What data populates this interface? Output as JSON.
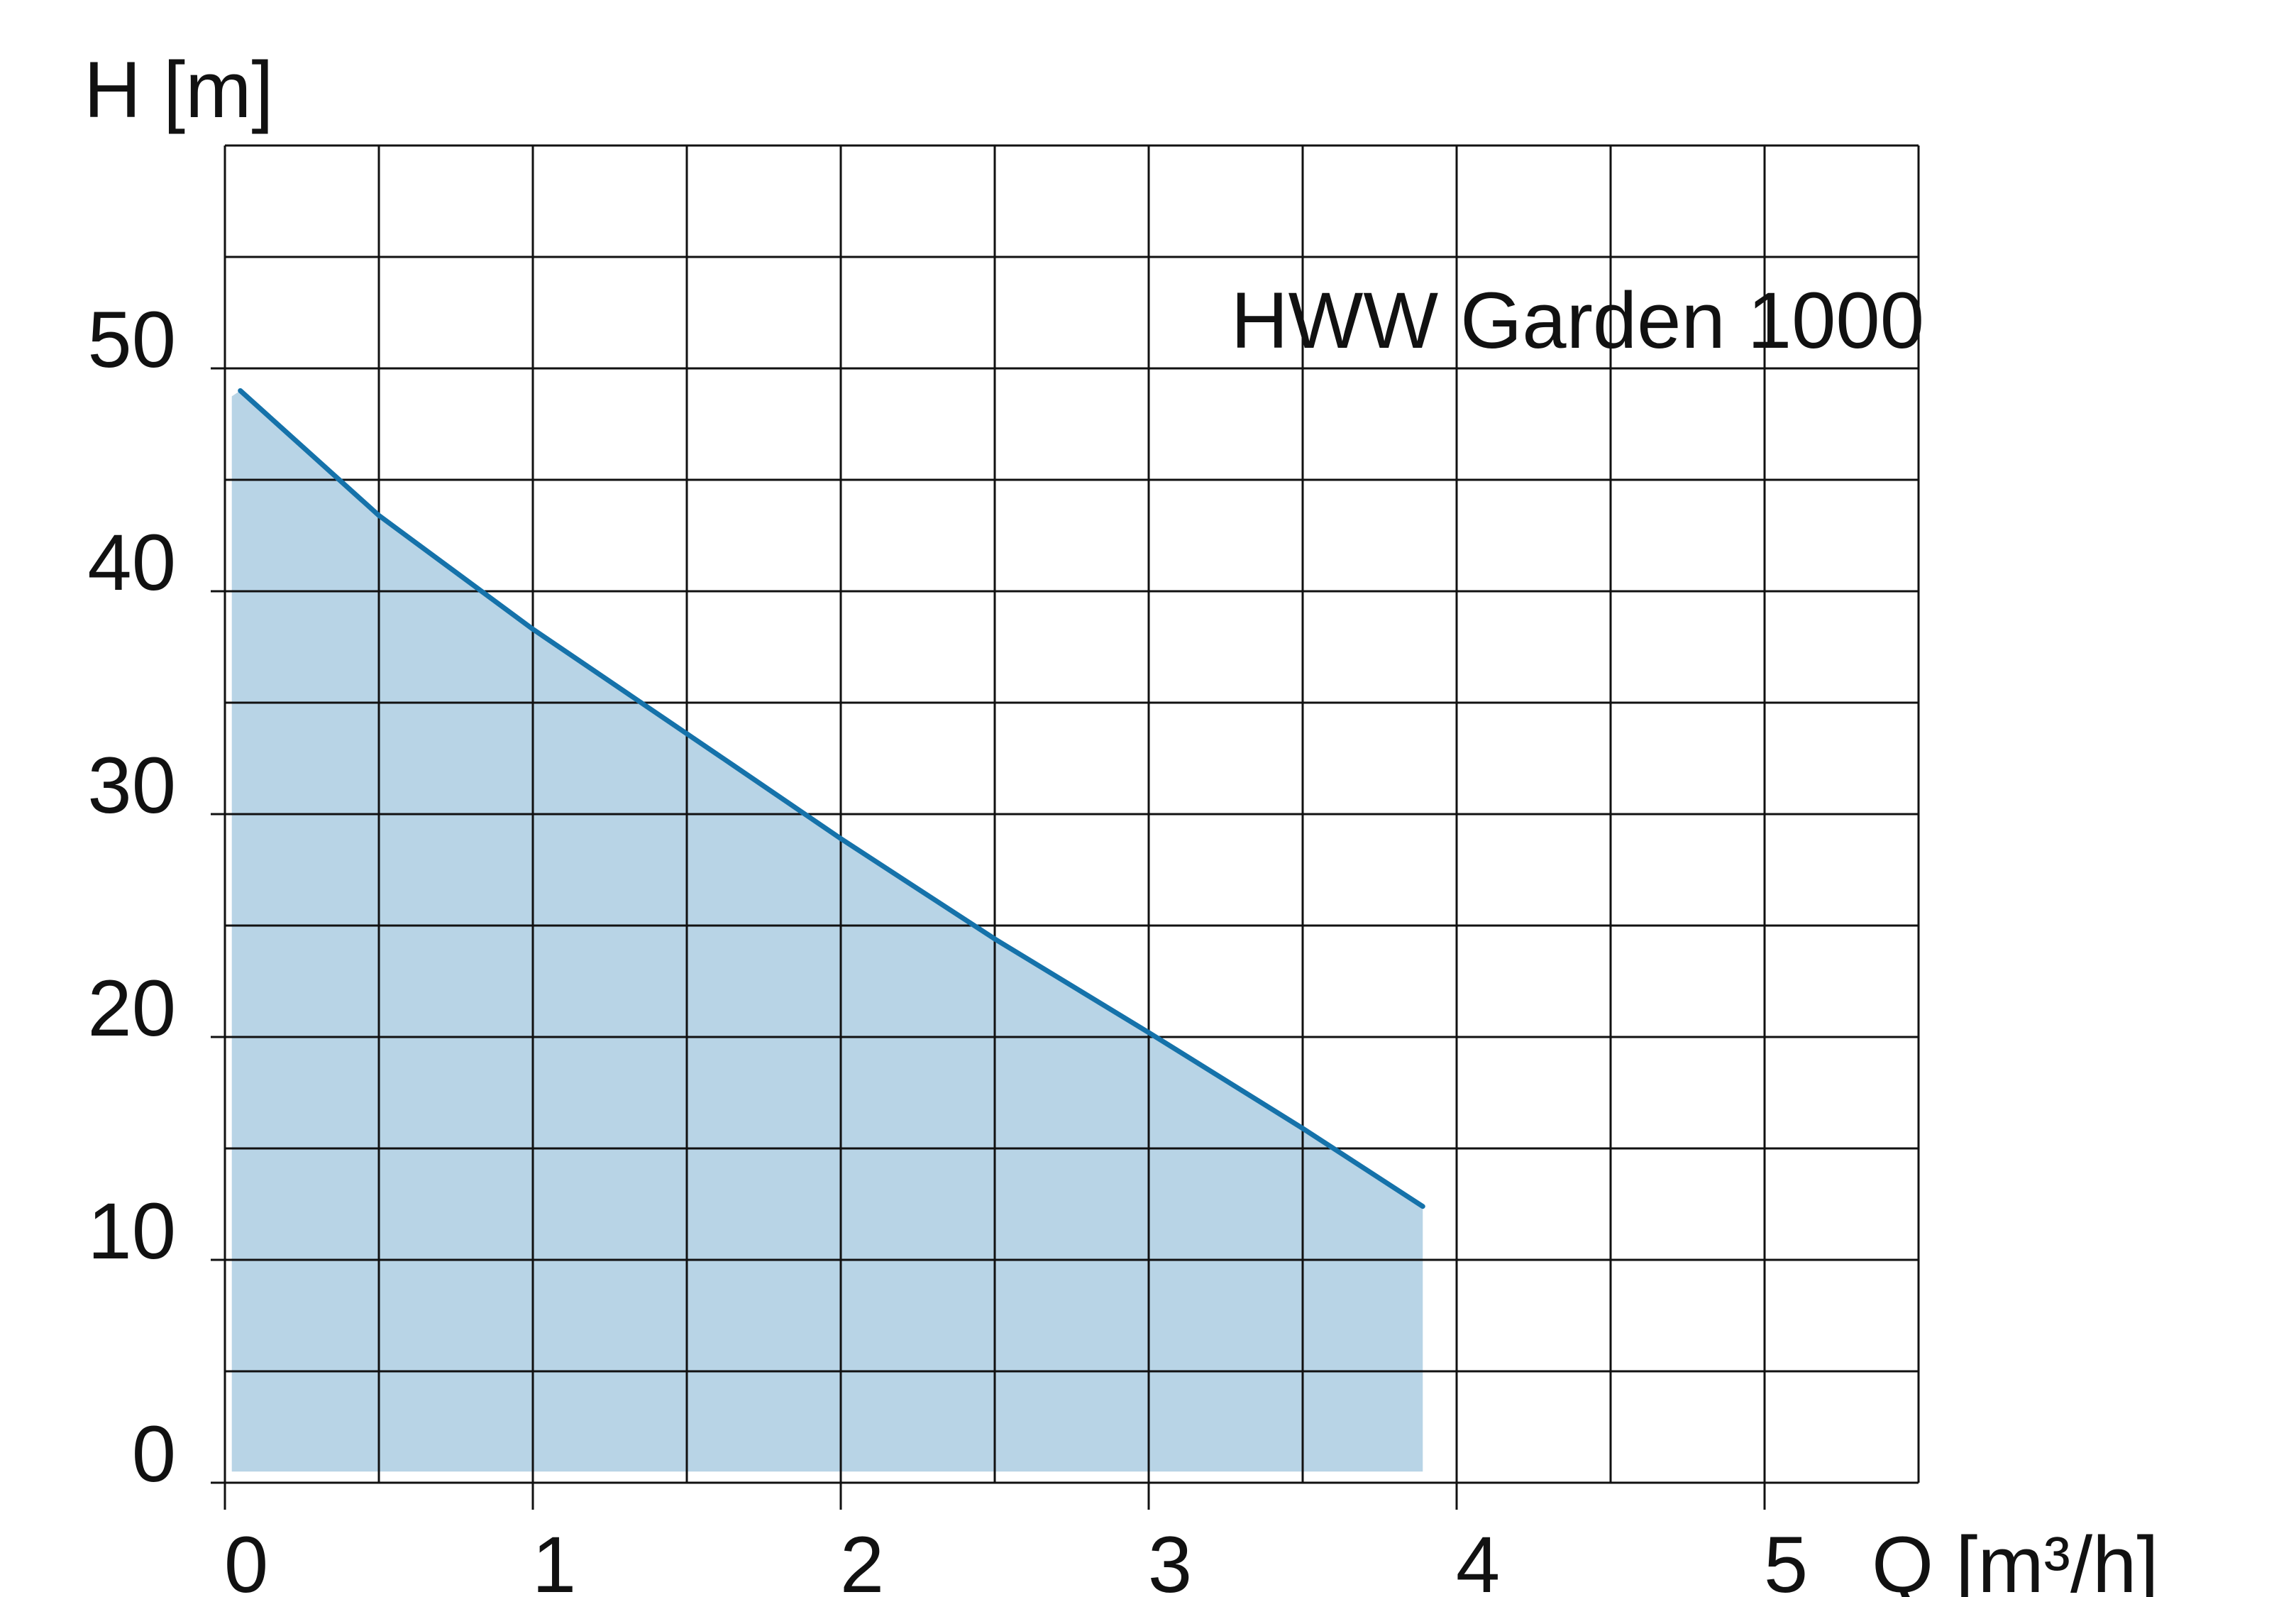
{
  "chart_data": {
    "type": "area",
    "title": "HWW Garden 1000",
    "xlabel": "Q [m³/h]",
    "ylabel": "H [m]",
    "xlim": [
      0,
      5.5
    ],
    "ylim": [
      0,
      60
    ],
    "grid": true,
    "x_grid_step": 0.5,
    "y_grid_step": 5,
    "x_ticks": [
      0,
      1,
      2,
      3,
      4,
      5
    ],
    "x_tick_labels": [
      "0",
      "1",
      "2",
      "3",
      "4",
      "5"
    ],
    "y_ticks": [
      0,
      10,
      20,
      30,
      40,
      50
    ],
    "y_tick_labels": [
      "0",
      "10",
      "20",
      "30",
      "40",
      "50"
    ],
    "series": [
      {
        "x": [
          0.05,
          0.5,
          1.0,
          1.65,
          2.0,
          2.5,
          3.0,
          3.5,
          3.89
        ],
        "y": [
          49.0,
          43.4,
          38.3,
          32.2,
          28.9,
          24.4,
          20.2,
          15.9,
          12.4
        ],
        "fill_baseline": 0.5,
        "line_color": "#1572aa",
        "fill_color": "#b8d4e6"
      }
    ]
  }
}
